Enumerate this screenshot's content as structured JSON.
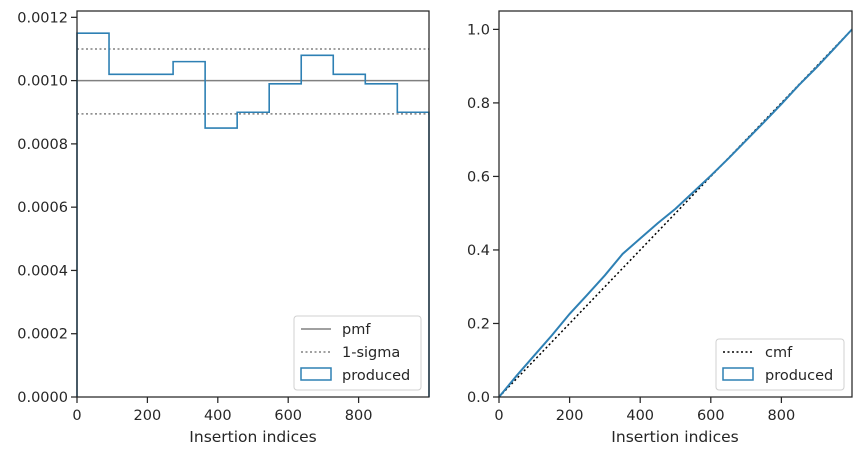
{
  "chart_data": [
    {
      "type": "histogram",
      "xlabel": "Insertion indices",
      "ylabel": "",
      "xlim": [
        0,
        1000
      ],
      "ylim": [
        0,
        0.00122
      ],
      "xticks": [
        0,
        200,
        400,
        600,
        800
      ],
      "xtick_labels": [
        "0",
        "200",
        "400",
        "600",
        "800"
      ],
      "yticks": [
        0,
        0.0002,
        0.0004,
        0.0006,
        0.0008,
        0.001,
        0.0012
      ],
      "ytick_labels": [
        "0.0000",
        "0.0002",
        "0.0004",
        "0.0006",
        "0.0008",
        "0.0010",
        "0.0012"
      ],
      "grid": false,
      "legend_position": "lower right",
      "bin_edges": [
        0,
        91,
        182,
        273,
        364,
        455,
        546,
        637,
        728,
        819,
        910,
        1000
      ],
      "series": [
        {
          "name": "pmf",
          "style": "solid",
          "color": "#808080",
          "y": 0.001
        },
        {
          "name": "1-sigma",
          "style": "dotted",
          "color": "#808080",
          "y": [
            0.000895,
            0.0011
          ]
        },
        {
          "name": "produced",
          "style": "step",
          "color": "#2e80b4",
          "values": [
            0.00115,
            0.00102,
            0.00102,
            0.00106,
            0.00085,
            0.0009,
            0.00099,
            0.00108,
            0.00102,
            0.00099,
            0.0009
          ]
        }
      ]
    },
    {
      "type": "line",
      "xlabel": "Insertion indices",
      "ylabel": "",
      "xlim": [
        0,
        1000
      ],
      "ylim": [
        0,
        1.05
      ],
      "xticks": [
        0,
        200,
        400,
        600,
        800
      ],
      "xtick_labels": [
        "0",
        "200",
        "400",
        "600",
        "800"
      ],
      "yticks": [
        0,
        0.2,
        0.4,
        0.6,
        0.8,
        1.0
      ],
      "ytick_labels": [
        "0.0",
        "0.2",
        "0.4",
        "0.6",
        "0.8",
        "1.0"
      ],
      "grid": false,
      "legend_position": "lower right",
      "series": [
        {
          "name": "cmf",
          "style": "dotted",
          "color": "#000000",
          "x": [
            0,
            1000
          ],
          "y": [
            0,
            1.0
          ]
        },
        {
          "name": "produced",
          "style": "solid",
          "color": "#2e80b4",
          "x": [
            0,
            50,
            100,
            150,
            200,
            250,
            300,
            350,
            400,
            450,
            500,
            550,
            600,
            650,
            700,
            750,
            800,
            850,
            900,
            950,
            1000
          ],
          "y": [
            0,
            0.058,
            0.113,
            0.168,
            0.226,
            0.278,
            0.331,
            0.389,
            0.431,
            0.473,
            0.512,
            0.557,
            0.602,
            0.649,
            0.698,
            0.747,
            0.797,
            0.849,
            0.897,
            0.948,
            1.0
          ]
        }
      ]
    }
  ]
}
